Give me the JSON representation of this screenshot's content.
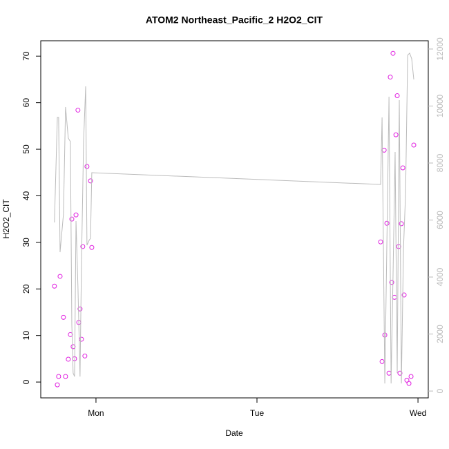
{
  "chart_data": {
    "type": "scatter",
    "title": "ATOM2 Northeast_Pacific_2 H2O2_CIT",
    "x_label": "Date",
    "y_label": "H2O2_CIT",
    "xlim": [
      -0.343,
      2.064
    ],
    "xticks": [
      {
        "value": 0,
        "label": "Mon"
      },
      {
        "value": 1,
        "label": "Tue"
      },
      {
        "value": 2,
        "label": "Wed"
      }
    ],
    "ylim": [
      -3.4,
      73.3
    ],
    "yticks": [
      0,
      10,
      20,
      30,
      40,
      50,
      60,
      70
    ],
    "y2lim": [
      -240,
      12290
    ],
    "y2ticks": [
      0,
      2000,
      4000,
      6000,
      8000,
      10000,
      12000
    ],
    "y2_color": "#bbbbbb",
    "series": [
      {
        "color": "#e01ee0",
        "x": [
          -0.258,
          -0.24,
          -0.232,
          -0.223,
          -0.202,
          -0.189,
          -0.172,
          -0.159,
          -0.15,
          -0.142,
          -0.133,
          -0.124,
          -0.112,
          -0.107,
          -0.099,
          -0.09,
          -0.082,
          -0.069,
          -0.056,
          -0.034,
          -0.026,
          1.768,
          1.777,
          1.79,
          1.794,
          1.807,
          1.82,
          1.828,
          1.837,
          1.845,
          1.854,
          1.863,
          1.871,
          1.88,
          1.888,
          1.897,
          1.906,
          1.914,
          1.931,
          1.944,
          1.957,
          1.974
        ],
        "values": [
          20.6,
          -0.6,
          1.2,
          22.7,
          13.9,
          1.2,
          4.9,
          10.2,
          35.0,
          7.6,
          5.0,
          35.9,
          58.4,
          12.8,
          15.7,
          9.2,
          29.1,
          5.6,
          46.3,
          43.2,
          28.9,
          30.1,
          4.4,
          49.8,
          10.1,
          34.1,
          1.9,
          65.5,
          21.4,
          70.6,
          18.2,
          53.1,
          61.5,
          29.1,
          1.9,
          34.0,
          46.0,
          18.7,
          0.4,
          -0.3,
          1.2,
          50.9
        ]
      },
      {
        "color": "#bbbbbb",
        "axis": "y2",
        "type": "line",
        "x": [
          -0.258,
          -0.24,
          -0.232,
          -0.223,
          -0.202,
          -0.189,
          -0.172,
          -0.159,
          -0.15,
          -0.142,
          -0.133,
          -0.124,
          -0.112,
          -0.099,
          -0.09,
          -0.077,
          -0.064,
          -0.056,
          -0.043,
          -0.034,
          -0.026,
          1.768,
          1.777,
          1.794,
          1.807,
          1.82,
          1.833,
          1.845,
          1.858,
          1.871,
          1.884,
          1.897,
          1.91,
          1.923,
          1.936,
          1.948,
          1.961,
          1.974
        ],
        "values": [
          5915,
          9600,
          9600,
          4873,
          6206,
          9964,
          8873,
          8752,
          2327,
          630,
          509,
          5964,
          3661,
          509,
          4509,
          8752,
          10691,
          5115,
          5285,
          5358,
          7661,
          7248,
          9600,
          267,
          5236,
          10327,
          267,
          4024,
          8388,
          630,
          10206,
          267,
          4994,
          6933,
          11782,
          11855,
          11661,
          10933
        ]
      }
    ]
  }
}
